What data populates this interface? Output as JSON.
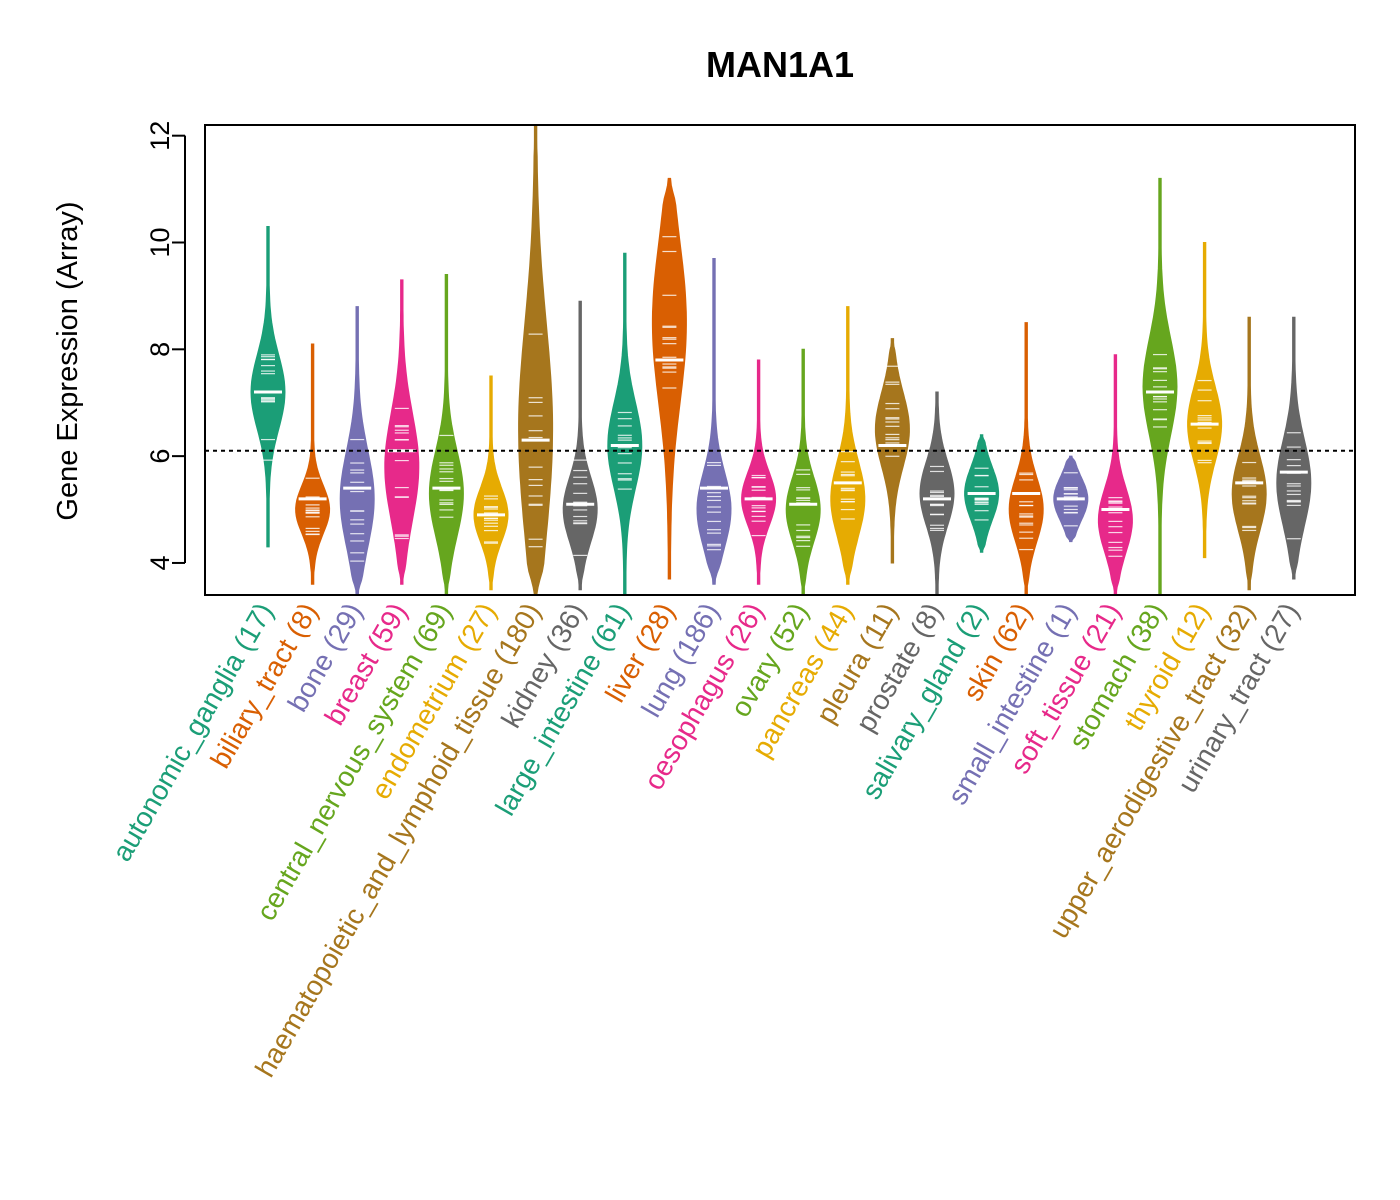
{
  "chart_data": {
    "type": "violin",
    "title": "MAN1A1",
    "ylabel": "Gene Expression (Array)",
    "xlabel": "",
    "ylim": [
      3.4,
      12.2
    ],
    "yticks": [
      4,
      6,
      8,
      10,
      12
    ],
    "reference_line": 6.1,
    "grid": false,
    "categories": [
      {
        "name": "autonomic_ganglia",
        "n": "(17)",
        "color": "#1B9E77",
        "min": 4.3,
        "max": 10.3,
        "median": 7.2,
        "mode": 7.2,
        "spread": 0.7
      },
      {
        "name": "biliary_tract",
        "n": "(8)",
        "color": "#D95F02",
        "min": 3.6,
        "max": 8.1,
        "median": 5.2,
        "mode": 5.0,
        "spread": 0.45
      },
      {
        "name": "bone",
        "n": "(29)",
        "color": "#7570B3",
        "min": 3.4,
        "max": 8.8,
        "median": 5.4,
        "mode": 5.2,
        "spread": 0.9
      },
      {
        "name": "breast",
        "n": "(59)",
        "color": "#E7298A",
        "min": 3.6,
        "max": 9.3,
        "median": 6.1,
        "mode": 5.8,
        "spread": 1.0
      },
      {
        "name": "central_nervous_system",
        "n": "(69)",
        "color": "#66A61E",
        "min": 3.4,
        "max": 9.4,
        "median": 5.4,
        "mode": 5.3,
        "spread": 0.8
      },
      {
        "name": "endometrium",
        "n": "(27)",
        "color": "#E6AB02",
        "min": 3.5,
        "max": 7.5,
        "median": 4.9,
        "mode": 4.9,
        "spread": 0.5
      },
      {
        "name": "haematopoietic_and_lymphoid_tissue",
        "n": "(180)",
        "color": "#A6761D",
        "min": 3.4,
        "max": 12.2,
        "median": 6.3,
        "mode": 6.5,
        "spread": 2.0
      },
      {
        "name": "kidney",
        "n": "(36)",
        "color": "#666666",
        "min": 3.5,
        "max": 8.9,
        "median": 5.1,
        "mode": 5.0,
        "spread": 0.6
      },
      {
        "name": "large_intestine",
        "n": "(61)",
        "color": "#1B9E77",
        "min": 3.4,
        "max": 9.8,
        "median": 6.2,
        "mode": 6.2,
        "spread": 0.8
      },
      {
        "name": "liver",
        "n": "(28)",
        "color": "#D95F02",
        "min": 3.7,
        "max": 11.2,
        "median": 7.8,
        "mode": 8.5,
        "spread": 1.5
      },
      {
        "name": "lung",
        "n": "(186)",
        "color": "#7570B3",
        "min": 3.6,
        "max": 9.7,
        "median": 5.4,
        "mode": 5.0,
        "spread": 0.7
      },
      {
        "name": "oesophagus",
        "n": "(26)",
        "color": "#E7298A",
        "min": 3.6,
        "max": 7.8,
        "median": 5.2,
        "mode": 5.2,
        "spread": 0.5
      },
      {
        "name": "ovary",
        "n": "(52)",
        "color": "#66A61E",
        "min": 3.4,
        "max": 8.0,
        "median": 5.1,
        "mode": 5.0,
        "spread": 0.6
      },
      {
        "name": "pancreas",
        "n": "(44)",
        "color": "#E6AB02",
        "min": 3.6,
        "max": 8.8,
        "median": 5.5,
        "mode": 5.2,
        "spread": 0.7
      },
      {
        "name": "pleura",
        "n": "(11)",
        "color": "#A6761D",
        "min": 4.0,
        "max": 8.2,
        "median": 6.2,
        "mode": 6.5,
        "spread": 0.7
      },
      {
        "name": "prostate",
        "n": "(8)",
        "color": "#666666",
        "min": 3.4,
        "max": 7.2,
        "median": 5.2,
        "mode": 5.3,
        "spread": 0.6
      },
      {
        "name": "salivary_gland",
        "n": "(2)",
        "color": "#1B9E77",
        "min": 4.2,
        "max": 6.4,
        "median": 5.3,
        "mode": 5.3,
        "spread": 0.5
      },
      {
        "name": "skin",
        "n": "(62)",
        "color": "#D95F02",
        "min": 3.4,
        "max": 8.5,
        "median": 5.3,
        "mode": 5.0,
        "spread": 0.6
      },
      {
        "name": "small_intestine",
        "n": "(1)",
        "color": "#7570B3",
        "min": 4.4,
        "max": 6.0,
        "median": 5.2,
        "mode": 5.2,
        "spread": 0.4
      },
      {
        "name": "soft_tissue",
        "n": "(21)",
        "color": "#E7298A",
        "min": 3.4,
        "max": 7.9,
        "median": 5.0,
        "mode": 4.8,
        "spread": 0.6
      },
      {
        "name": "stomach",
        "n": "(38)",
        "color": "#66A61E",
        "min": 3.4,
        "max": 11.2,
        "median": 7.2,
        "mode": 7.3,
        "spread": 0.9
      },
      {
        "name": "thyroid",
        "n": "(12)",
        "color": "#E6AB02",
        "min": 4.1,
        "max": 10.0,
        "median": 6.6,
        "mode": 6.6,
        "spread": 0.7
      },
      {
        "name": "upper_aerodigestive_tract",
        "n": "(32)",
        "color": "#A6761D",
        "min": 3.5,
        "max": 8.6,
        "median": 5.5,
        "mode": 5.3,
        "spread": 0.7
      },
      {
        "name": "urinary_tract",
        "n": "(27)",
        "color": "#666666",
        "min": 3.7,
        "max": 8.6,
        "median": 5.7,
        "mode": 5.5,
        "spread": 0.8
      }
    ]
  }
}
